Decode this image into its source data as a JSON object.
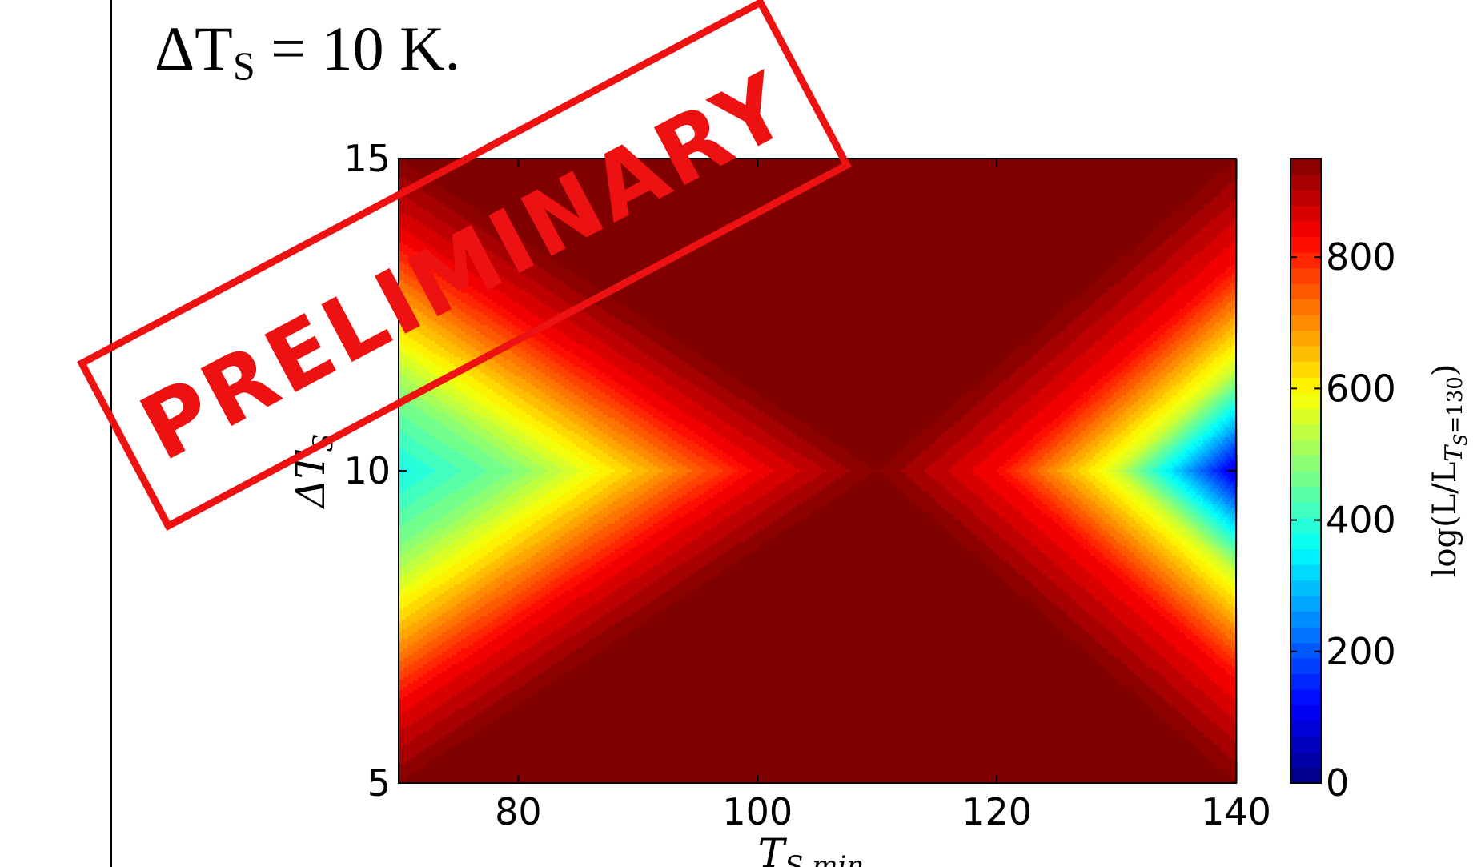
{
  "heading": {
    "delta": "ΔT",
    "subscript": "S",
    "rest": " = 10 K."
  },
  "chart_data": {
    "type": "heatmap",
    "x": {
      "label_main": "T",
      "label_sub": "S min",
      "range": [
        70,
        140
      ],
      "ticks": [
        "80",
        "100",
        "120",
        "140"
      ]
    },
    "y": {
      "label_main": "ΔT",
      "label_sub": "S",
      "range": [
        5,
        15
      ],
      "ticks": [
        "5",
        "10",
        "15"
      ]
    },
    "colorbar": {
      "label": "log(L/L_{T_S=130})",
      "label_main": "log(L/L",
      "label_sub": "T",
      "label_subsub": "S",
      "label_eq": "=130",
      "label_close": ")",
      "range": [
        0,
        950
      ],
      "ticks": [
        "0",
        "200",
        "400",
        "600",
        "800"
      ],
      "colormap": "jet"
    },
    "peak": {
      "x": 110,
      "y": 10,
      "value": 950
    },
    "x_profile": {
      "x": [
        70,
        80,
        90,
        100,
        110,
        120,
        130,
        140
      ],
      "value_at_dt10": [
        370,
        480,
        650,
        840,
        950,
        830,
        550,
        75
      ]
    },
    "contour_levels": 40
  },
  "watermark": {
    "text": "PRELIMINARY",
    "color": "#ee1111"
  }
}
